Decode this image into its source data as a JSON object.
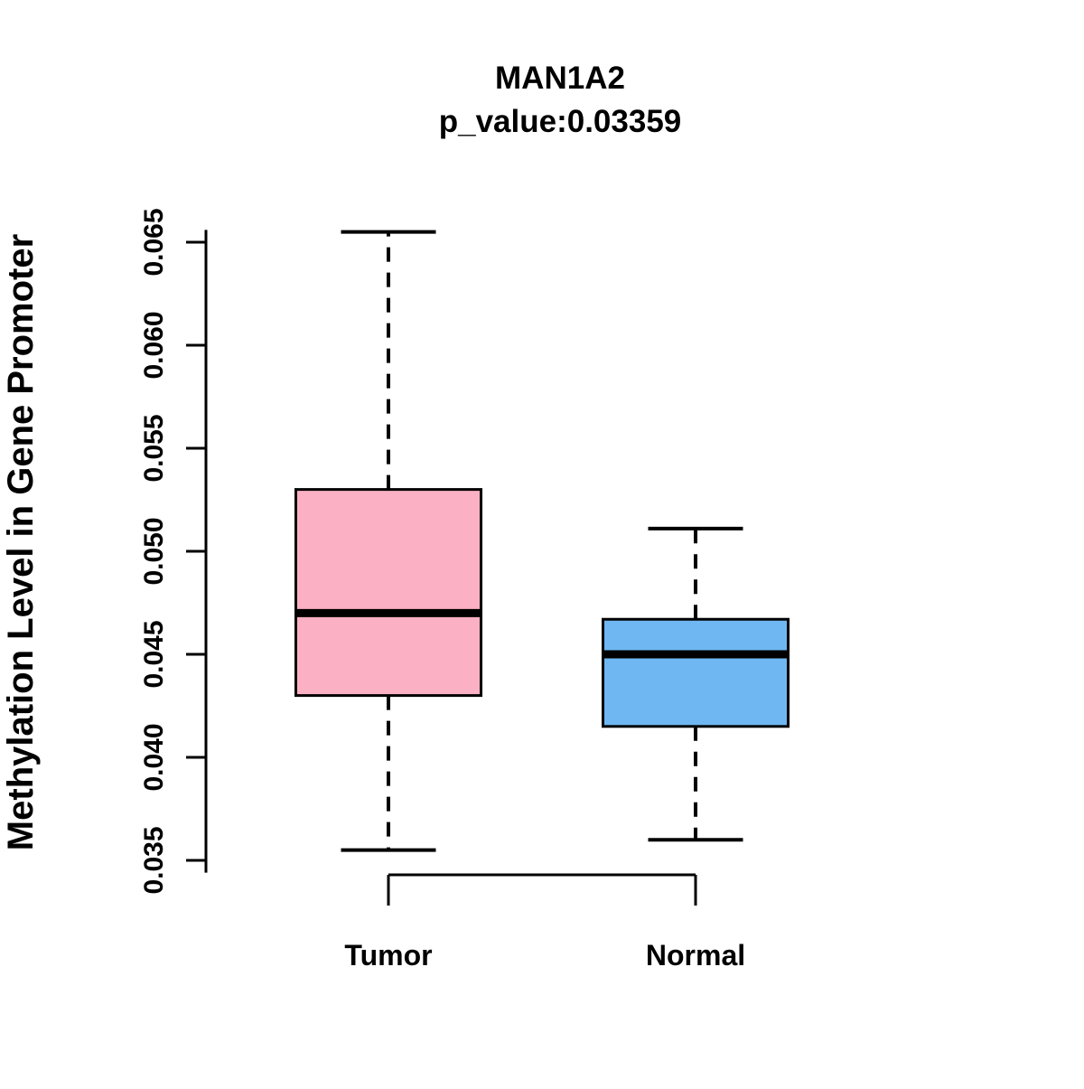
{
  "title": "MAN1A2",
  "subtitle": "p_value:0.03359",
  "chart_data": {
    "type": "boxplot",
    "title": "MAN1A2",
    "subtitle": "p_value:0.03359",
    "ylabel": "Methylation Level in Gene Promoter",
    "xlabel": "",
    "categories": [
      "Tumor",
      "Normal"
    ],
    "series": [
      {
        "name": "Tumor",
        "color": "#FBB0C3",
        "whisker_low": 0.0355,
        "q1": 0.043,
        "median": 0.047,
        "q3": 0.053,
        "whisker_high": 0.0655
      },
      {
        "name": "Normal",
        "color": "#6FB7F2",
        "whisker_low": 0.036,
        "q1": 0.0415,
        "median": 0.045,
        "q3": 0.0467,
        "whisker_high": 0.0511
      }
    ],
    "y_ticks": [
      0.035,
      0.04,
      0.045,
      0.05,
      0.055,
      0.06,
      0.065
    ],
    "ylim": [
      0.0344,
      0.0656
    ],
    "grid": false,
    "legend": "none"
  },
  "colors": {
    "tumor_fill": "#FBB0C3",
    "normal_fill": "#6FB7F2",
    "stroke": "#000000",
    "background": "#FFFFFF"
  }
}
